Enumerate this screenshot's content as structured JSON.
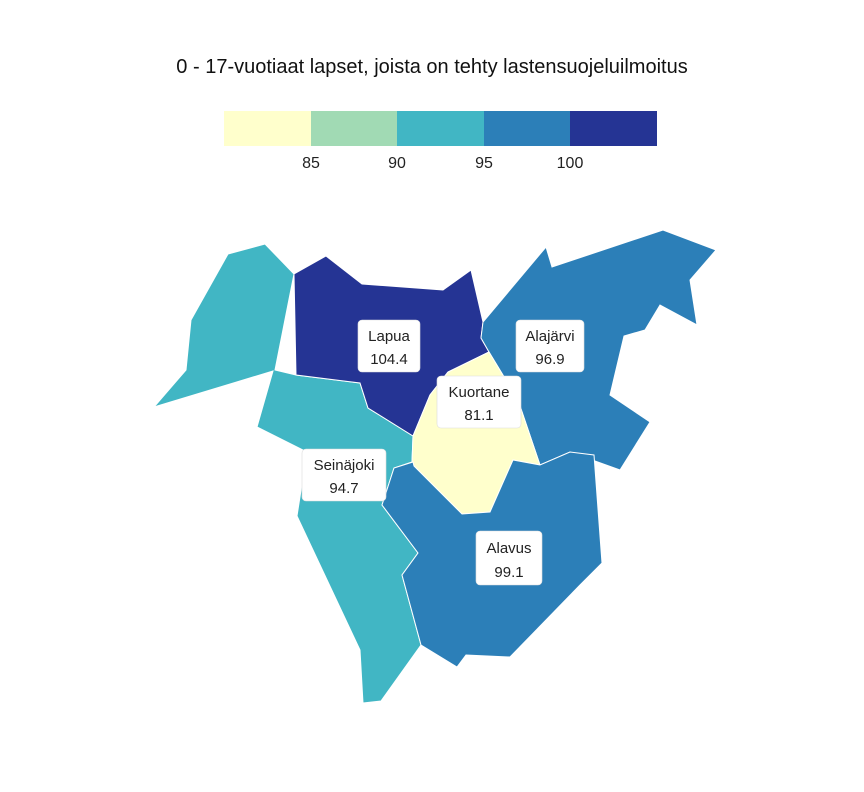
{
  "title": "0 - 17-vuotiaat lapset, joista on tehty lastensuojeluilmoitus",
  "legend": {
    "bins": [
      {
        "color": "#ffffcc"
      },
      {
        "color": "#a1dab4"
      },
      {
        "color": "#41b6c4"
      },
      {
        "color": "#2c7fb8"
      },
      {
        "color": "#253494"
      }
    ],
    "ticks": [
      "85",
      "90",
      "95",
      "100"
    ]
  },
  "regions": [
    {
      "id": "lapua",
      "name": "Lapua",
      "value": "104.4",
      "color": "#253494"
    },
    {
      "id": "alajarvi",
      "name": "Alajärvi",
      "value": "96.9",
      "color": "#2c7fb8"
    },
    {
      "id": "kuortane",
      "name": "Kuortane",
      "value": "81.1",
      "color": "#ffffcc"
    },
    {
      "id": "seinajoki",
      "name": "Seinäjoki",
      "value": "94.7",
      "color": "#41b6c4"
    },
    {
      "id": "alavus",
      "name": "Alavus",
      "value": "99.1",
      "color": "#2c7fb8"
    }
  ]
}
